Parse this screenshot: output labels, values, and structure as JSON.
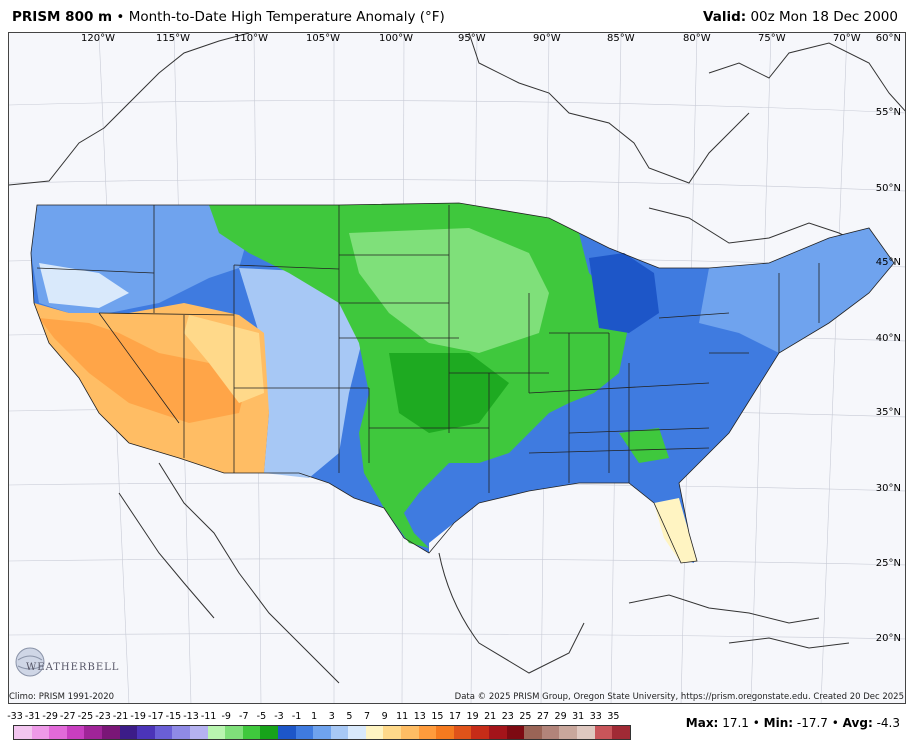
{
  "header": {
    "title_bold": "PRISM 800 m",
    "bullet": "•",
    "title_rest": "Month-to-Date High Temperature Anomaly (°F)",
    "valid_label": "Valid:",
    "valid_value": "00z Mon 18 Dec 2000"
  },
  "map": {
    "lon_labels": [
      "120°W",
      "115°W",
      "110°W",
      "105°W",
      "100°W",
      "95°W",
      "90°W",
      "85°W",
      "80°W",
      "75°W",
      "70°W"
    ],
    "lat_labels": [
      "60°N",
      "55°N",
      "50°N",
      "45°N",
      "40°N",
      "35°N",
      "30°N",
      "25°N",
      "20°N"
    ]
  },
  "footer": {
    "climo": "Climo: PRISM 1991-2020",
    "credits": "Data © 2025 PRISM Group, Oregon State University, https://prism.oregonstate.edu. Created 20 Dec 2025",
    "logo_text": "WEATHERBELL"
  },
  "scale": {
    "labels": [
      "-33",
      "-31",
      "-29",
      "-27",
      "-25",
      "-23",
      "-21",
      "-19",
      "-17",
      "-15",
      "-13",
      "-11",
      "-9",
      "-7",
      "-5",
      "-3",
      "-1",
      "1",
      "3",
      "5",
      "7",
      "9",
      "11",
      "13",
      "15",
      "17",
      "19",
      "21",
      "23",
      "25",
      "27",
      "29",
      "31",
      "33",
      "35"
    ],
    "colors": [
      "#f3c6f0",
      "#ee9ae8",
      "#e26ad9",
      "#c83ec0",
      "#a02498",
      "#7a1677",
      "#3c1c88",
      "#4b34b8",
      "#6a5fd6",
      "#8f8ae6",
      "#b5b2f0",
      "#b9f5b0",
      "#7fe07a",
      "#3fc83d",
      "#17a31a",
      "#1d56c8",
      "#3f7be0",
      "#6fa3ee",
      "#a7c8f5",
      "#d9e9fb",
      "#fff4c2",
      "#ffd98a",
      "#ffbd64",
      "#ff9b3c",
      "#f57a1f",
      "#e0531a",
      "#c62c18",
      "#a4141a",
      "#7d0a12",
      "#9a6456",
      "#b2847a",
      "#c9a79c",
      "#dfc8c0",
      "#c8555a",
      "#a02a35"
    ]
  },
  "stats": {
    "max_label": "Max:",
    "max_value": "17.1",
    "min_label": "Min:",
    "min_value": "-17.7",
    "avg_label": "Avg:",
    "avg_value": "-4.3"
  }
}
